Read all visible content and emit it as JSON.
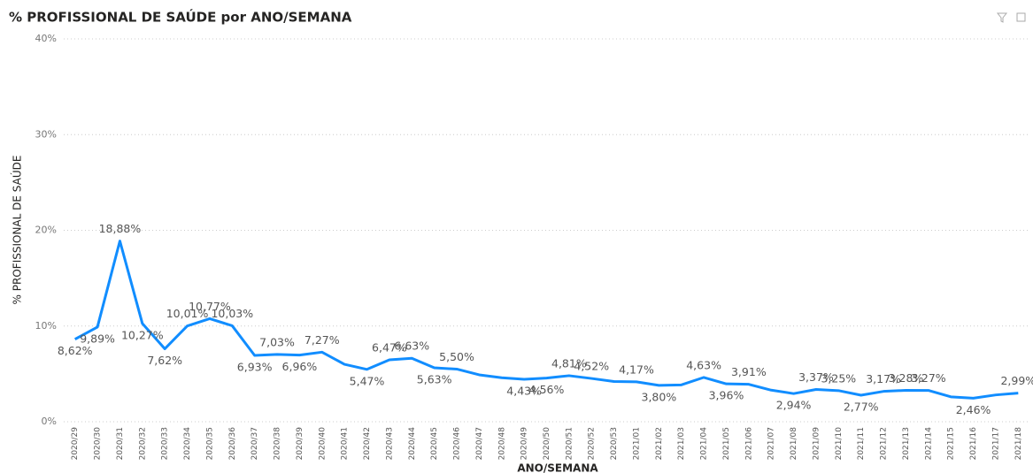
{
  "chart_data": {
    "type": "line",
    "title": "% PROFISSIONAL DE SAÚDE por ANO/SEMANA",
    "x_label": "ANO/SEMANA",
    "y_label": "% PROFISSIONAL DE SAÚDE",
    "categories": [
      "2020/29",
      "2020/30",
      "2020/31",
      "2020/32",
      "2020/33",
      "2020/34",
      "2020/35",
      "2020/36",
      "2020/37",
      "2020/38",
      "2020/39",
      "2020/40",
      "2020/41",
      "2020/42",
      "2020/43",
      "2020/44",
      "2020/45",
      "2020/46",
      "2020/47",
      "2020/48",
      "2020/49",
      "2020/50",
      "2020/51",
      "2020/52",
      "2020/53",
      "2021/01",
      "2021/02",
      "2021/03",
      "2021/04",
      "2021/05",
      "2021/06",
      "2021/07",
      "2021/08",
      "2021/09",
      "2021/10",
      "2021/11",
      "2021/12",
      "2021/13",
      "2021/14",
      "2021/15",
      "2021/16",
      "2021/17",
      "2021/18"
    ],
    "series": [
      {
        "name": "% PROFISSIONAL DE SAÚDE",
        "color": "#118dff",
        "values": [
          8.62,
          9.89,
          18.88,
          10.27,
          7.62,
          10.01,
          10.77,
          10.03,
          6.93,
          7.03,
          6.96,
          7.27,
          6.0,
          5.47,
          6.47,
          6.63,
          5.63,
          5.5,
          4.9,
          4.6,
          4.43,
          4.56,
          4.81,
          4.52,
          4.2,
          4.17,
          3.8,
          3.85,
          4.63,
          3.96,
          3.91,
          3.3,
          2.94,
          3.37,
          3.25,
          2.77,
          3.17,
          3.28,
          3.27,
          2.6,
          2.46,
          2.8,
          2.99
        ],
        "value_labels": [
          "8,62%",
          "9,89%",
          "18,88%",
          "10,27%",
          "7,62%",
          "10,01%",
          "10,77%",
          "10,03%",
          "6,93%",
          "7,03%",
          "6,96%",
          "7,27%",
          null,
          "5,47%",
          "6,47%",
          "6,63%",
          "5,63%",
          "5,50%",
          null,
          null,
          "4,43%",
          "4,56%",
          "4,81%",
          "4,52%",
          null,
          "4,17%",
          "3,80%",
          null,
          "4,63%",
          "3,96%",
          "3,91%",
          null,
          "2,94%",
          "3,37%",
          "3,25%",
          "2,77%",
          "3,17%",
          "3,28%",
          "3,27%",
          null,
          "2,46%",
          null,
          "2,99%"
        ]
      }
    ],
    "ylim": [
      0,
      40
    ],
    "yticks": [
      {
        "value": 0,
        "label": "0%"
      },
      {
        "value": 10,
        "label": "10%"
      },
      {
        "value": 20,
        "label": "20%"
      },
      {
        "value": 30,
        "label": "30%"
      },
      {
        "value": 40,
        "label": "40%"
      }
    ],
    "grid": true
  }
}
